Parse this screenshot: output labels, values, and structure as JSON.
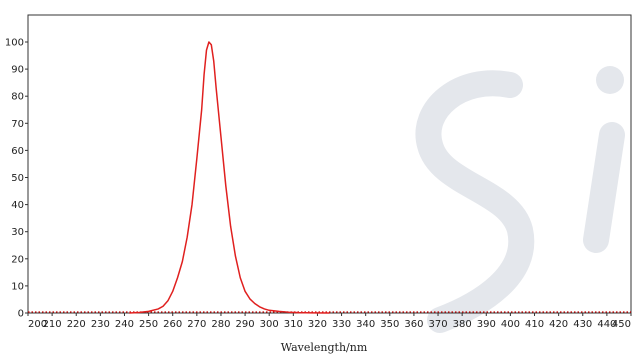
{
  "chart_data": {
    "type": "line",
    "xlabel": "Wavelength/nm",
    "ylabel": "",
    "title": "",
    "xlim": [
      200,
      450
    ],
    "ylim": [
      0,
      110
    ],
    "x_ticks": [
      200,
      210,
      220,
      230,
      240,
      250,
      260,
      270,
      280,
      290,
      300,
      310,
      320,
      330,
      340,
      350,
      360,
      370,
      380,
      390,
      400,
      410,
      420,
      430,
      440,
      450
    ],
    "y_ticks": [
      0,
      10,
      20,
      30,
      40,
      50,
      60,
      70,
      80,
      90,
      100
    ],
    "grid": false,
    "baseline": {
      "y": 0,
      "color": "#cc0000",
      "style": "dotted"
    },
    "series": [
      {
        "color": "#e0201f",
        "x": [
          242,
          246,
          250,
          254,
          256,
          258,
          260,
          262,
          264,
          266,
          268,
          270,
          272,
          273,
          274,
          275,
          276,
          277,
          278,
          280,
          282,
          284,
          286,
          288,
          290,
          292,
          294,
          296,
          298,
          300,
          304,
          308,
          312,
          318,
          325
        ],
        "y": [
          0,
          0.2,
          0.6,
          1.5,
          2.5,
          4.5,
          8,
          13,
          19,
          28,
          40,
          57,
          75,
          88,
          97,
          100,
          99,
          93,
          83,
          65,
          47,
          32,
          21,
          13,
          8,
          5.2,
          3.5,
          2.3,
          1.5,
          1.0,
          0.6,
          0.3,
          0.15,
          0.05,
          0
        ]
      }
    ]
  },
  "watermark": {
    "text": "Si",
    "color": "#e4e7ec"
  }
}
